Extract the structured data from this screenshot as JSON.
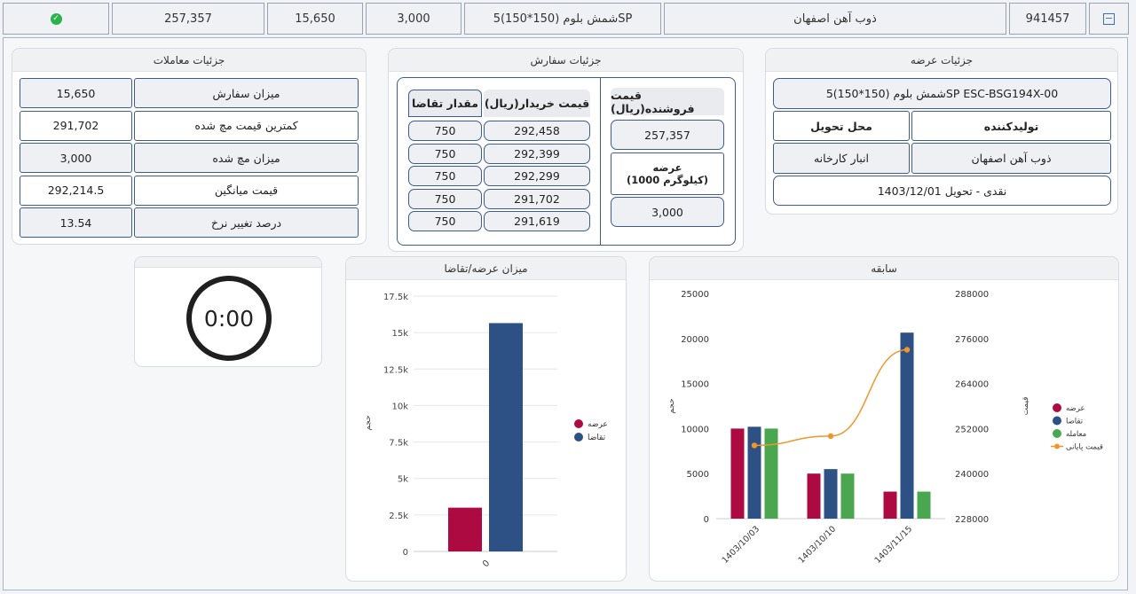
{
  "top_row": {
    "code": "941457",
    "producer": "ذوب آهن اصفهان",
    "product": "شمش بلوم (150*150)5SP",
    "quantity": "3,000",
    "order_volume": "15,650",
    "base_price": "257,357",
    "status_icon": "check-circle-icon"
  },
  "offer_details": {
    "title": "جزئیات عرضه",
    "product_name": "شمش بلوم (150*150)5SP ESC-BSG194X-00",
    "producer_label": "تولیدکننده",
    "delivery_place_label": "محل تحویل",
    "producer_value": "ذوب آهن اصفهان",
    "delivery_place_value": "انبار کارخانه",
    "settlement": "نقدی - تحویل 1403/12/01"
  },
  "order_details": {
    "title": "جزئیات سفارش",
    "demand_qty_header": "مقدار تقاضا",
    "buyer_price_header": "قیمت خریدار(ریال)",
    "seller_price_header": "قیمت فروشنده(ریال)",
    "seller_price_value": "257,357",
    "supply_label": "عرضه",
    "supply_unit": "(1000 کیلوگرم)",
    "supply_value": "3,000",
    "rows": [
      {
        "price": "292,458",
        "qty": "750"
      },
      {
        "price": "292,399",
        "qty": "750"
      },
      {
        "price": "292,299",
        "qty": "750"
      },
      {
        "price": "291,702",
        "qty": "750"
      },
      {
        "price": "291,619",
        "qty": "750"
      }
    ]
  },
  "trade_details": {
    "title": "جزئیات معاملات",
    "rows": [
      {
        "label": "میزان سفارش",
        "value": "15,650"
      },
      {
        "label": "کمترین قیمت مچ شده",
        "value": "291,702"
      },
      {
        "label": "میزان مچ شده",
        "value": "3,000"
      },
      {
        "label": "قیمت میانگین",
        "value": "292,214.5"
      },
      {
        "label": "درصد تغییر نرخ",
        "value": "13.54"
      }
    ]
  },
  "timer": {
    "value": "0:00"
  },
  "chart_data": [
    {
      "type": "bar",
      "title": "میزان عرضه/تقاضا",
      "categories": [
        "0"
      ],
      "series": [
        {
          "name": "عرضه",
          "values": [
            3000
          ],
          "color": "#ad0a41"
        },
        {
          "name": "تقاضا",
          "values": [
            15650
          ],
          "color": "#2e5185"
        }
      ],
      "ylim": [
        0,
        17500
      ],
      "yticks": [
        "0",
        "2.5k",
        "5k",
        "7.5k",
        "10k",
        "12.5k",
        "15k",
        "17.5k"
      ],
      "ylabel": "حجم",
      "grid": true,
      "legend": "right"
    },
    {
      "type": "bar",
      "title": "سابقه",
      "categories": [
        "1403/10/03",
        "1403/10/10",
        "1403/11/15"
      ],
      "series": [
        {
          "name": "عرضه",
          "values": [
            10000,
            5000,
            3000
          ],
          "color": "#ad0a41"
        },
        {
          "name": "تقاضا",
          "values": [
            10200,
            5500,
            20650
          ],
          "color": "#2e5185"
        },
        {
          "name": "معامله",
          "values": [
            10000,
            5000,
            3000
          ],
          "color": "#4aa74f"
        },
        {
          "name": "قیمت پایانی",
          "type": "line",
          "axis": "right",
          "values": [
            247500,
            250000,
            273000
          ],
          "color": "#f0962b"
        }
      ],
      "ylim": [
        0,
        25000
      ],
      "yticks": [
        "0",
        "5000",
        "10000",
        "15000",
        "20000",
        "25000"
      ],
      "y2lim": [
        228000,
        288000
      ],
      "y2ticks": [
        "228000",
        "240000",
        "252000",
        "264000",
        "276000",
        "288000"
      ],
      "ylabel": "حجم",
      "y2label": "قیمت",
      "grid": true,
      "legend": "right"
    }
  ]
}
